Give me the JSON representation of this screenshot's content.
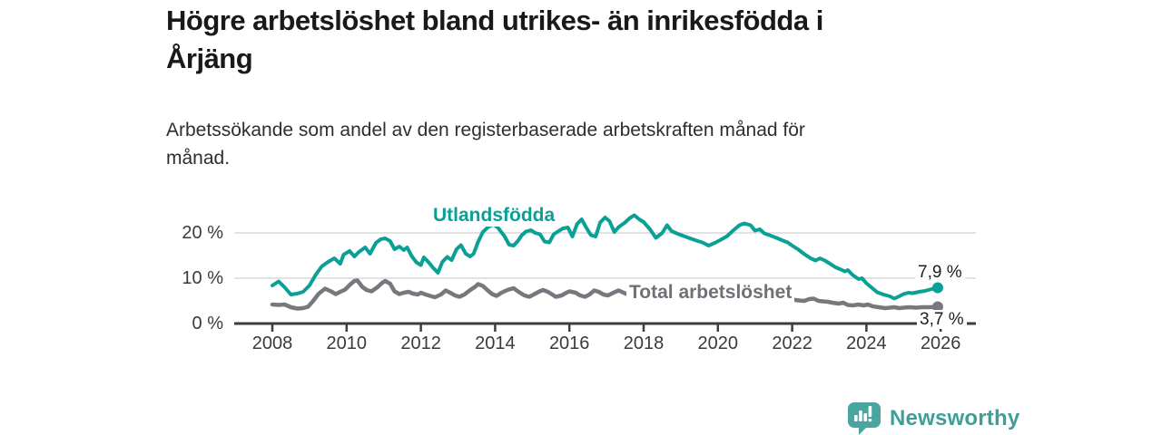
{
  "header": {
    "title": "Högre arbetslöshet bland utrikes- än inrikesfödda i\nÅrjäng",
    "subtitle": "Arbetssökande som andel av den registerbaserade arbetskraften månad för\nmånad."
  },
  "chart_data": {
    "type": "line",
    "title": "Högre arbetslöshet bland utrikes- än inrikesfödda i Årjäng",
    "subtitle": "Arbetssökande som andel av den registerbaserade arbetskraften månad för månad.",
    "unit": "%",
    "x_axis": {
      "ticks": [
        2008,
        2010,
        2012,
        2014,
        2016,
        2018,
        2020,
        2022,
        2024,
        2026
      ],
      "range": [
        2008,
        2026.8
      ]
    },
    "y_axis": {
      "ticks": [
        0,
        10,
        20
      ],
      "tick_labels": [
        "0 %",
        "10 %",
        "20 %"
      ],
      "range": [
        0,
        25
      ],
      "grid": true
    },
    "grid_color": "#d9d9d9",
    "axis_color": "#3d3d3d",
    "legend_position": "inline-labels",
    "series": [
      {
        "name": "Utlandsfödda",
        "color": "#0aa096",
        "end_label": "7,9 %",
        "end_value": 7.9,
        "points": [
          [
            2008.0,
            8.4
          ],
          [
            2008.17,
            9.3
          ],
          [
            2008.33,
            8.0
          ],
          [
            2008.5,
            6.4
          ],
          [
            2008.67,
            6.6
          ],
          [
            2008.83,
            7.0
          ],
          [
            2009.0,
            8.4
          ],
          [
            2009.17,
            10.8
          ],
          [
            2009.33,
            12.6
          ],
          [
            2009.5,
            13.6
          ],
          [
            2009.67,
            14.4
          ],
          [
            2009.83,
            13.2
          ],
          [
            2009.92,
            15.2
          ],
          [
            2010.08,
            16.0
          ],
          [
            2010.21,
            14.8
          ],
          [
            2010.33,
            15.8
          ],
          [
            2010.5,
            16.8
          ],
          [
            2010.63,
            15.4
          ],
          [
            2010.79,
            17.8
          ],
          [
            2010.92,
            18.6
          ],
          [
            2011.04,
            18.8
          ],
          [
            2011.17,
            18.2
          ],
          [
            2011.29,
            16.4
          ],
          [
            2011.42,
            17.0
          ],
          [
            2011.54,
            16.2
          ],
          [
            2011.63,
            16.8
          ],
          [
            2011.75,
            14.9
          ],
          [
            2011.88,
            13.5
          ],
          [
            2012.0,
            12.9
          ],
          [
            2012.08,
            14.6
          ],
          [
            2012.21,
            13.5
          ],
          [
            2012.33,
            12.3
          ],
          [
            2012.46,
            11.2
          ],
          [
            2012.58,
            13.6
          ],
          [
            2012.71,
            14.7
          ],
          [
            2012.83,
            14.0
          ],
          [
            2012.96,
            16.4
          ],
          [
            2013.08,
            17.3
          ],
          [
            2013.21,
            15.4
          ],
          [
            2013.33,
            14.8
          ],
          [
            2013.42,
            15.4
          ],
          [
            2013.54,
            18.0
          ],
          [
            2013.67,
            20.2
          ],
          [
            2013.83,
            21.4
          ],
          [
            2013.96,
            21.9
          ],
          [
            2014.08,
            21.1
          ],
          [
            2014.25,
            19.3
          ],
          [
            2014.38,
            17.4
          ],
          [
            2014.5,
            17.2
          ],
          [
            2014.63,
            18.4
          ],
          [
            2014.71,
            19.4
          ],
          [
            2014.83,
            20.3
          ],
          [
            2014.96,
            20.6
          ],
          [
            2015.08,
            20.0
          ],
          [
            2015.21,
            19.7
          ],
          [
            2015.33,
            18.1
          ],
          [
            2015.46,
            17.9
          ],
          [
            2015.58,
            19.7
          ],
          [
            2015.71,
            20.4
          ],
          [
            2015.83,
            21.0
          ],
          [
            2015.96,
            21.2
          ],
          [
            2016.08,
            19.2
          ],
          [
            2016.21,
            22.0
          ],
          [
            2016.33,
            23.0
          ],
          [
            2016.46,
            21.1
          ],
          [
            2016.58,
            19.5
          ],
          [
            2016.71,
            19.2
          ],
          [
            2016.83,
            22.3
          ],
          [
            2016.96,
            23.4
          ],
          [
            2017.08,
            22.6
          ],
          [
            2017.21,
            20.2
          ],
          [
            2017.33,
            21.3
          ],
          [
            2017.5,
            22.3
          ],
          [
            2017.63,
            23.3
          ],
          [
            2017.75,
            23.9
          ],
          [
            2017.88,
            23.0
          ],
          [
            2018.0,
            22.4
          ],
          [
            2018.17,
            20.8
          ],
          [
            2018.33,
            18.9
          ],
          [
            2018.5,
            20.0
          ],
          [
            2018.63,
            21.7
          ],
          [
            2018.75,
            20.4
          ],
          [
            2018.92,
            19.8
          ],
          [
            2019.08,
            19.3
          ],
          [
            2019.25,
            18.8
          ],
          [
            2019.42,
            18.3
          ],
          [
            2019.58,
            17.9
          ],
          [
            2019.75,
            17.2
          ],
          [
            2019.92,
            17.8
          ],
          [
            2020.08,
            18.5
          ],
          [
            2020.25,
            19.3
          ],
          [
            2020.42,
            20.6
          ],
          [
            2020.58,
            21.7
          ],
          [
            2020.71,
            22.1
          ],
          [
            2020.88,
            21.7
          ],
          [
            2021.0,
            20.5
          ],
          [
            2021.13,
            20.8
          ],
          [
            2021.25,
            19.9
          ],
          [
            2021.42,
            19.4
          ],
          [
            2021.58,
            18.9
          ],
          [
            2021.75,
            18.3
          ],
          [
            2021.88,
            17.9
          ],
          [
            2022.0,
            17.2
          ],
          [
            2022.17,
            16.3
          ],
          [
            2022.33,
            15.3
          ],
          [
            2022.5,
            14.4
          ],
          [
            2022.63,
            13.9
          ],
          [
            2022.75,
            14.4
          ],
          [
            2022.88,
            13.9
          ],
          [
            2023.0,
            13.3
          ],
          [
            2023.17,
            12.4
          ],
          [
            2023.29,
            12.0
          ],
          [
            2023.42,
            11.5
          ],
          [
            2023.5,
            11.8
          ],
          [
            2023.63,
            10.7
          ],
          [
            2023.79,
            9.8
          ],
          [
            2023.88,
            10.0
          ],
          [
            2024.0,
            8.9
          ],
          [
            2024.13,
            8.0
          ],
          [
            2024.29,
            6.9
          ],
          [
            2024.46,
            6.4
          ],
          [
            2024.63,
            6.0
          ],
          [
            2024.75,
            5.5
          ],
          [
            2024.88,
            6.0
          ],
          [
            2025.0,
            6.5
          ],
          [
            2025.13,
            6.8
          ],
          [
            2025.25,
            6.7
          ],
          [
            2025.42,
            7.0
          ],
          [
            2025.58,
            7.2
          ],
          [
            2025.75,
            7.6
          ],
          [
            2025.92,
            7.9
          ]
        ]
      },
      {
        "name": "Total arbetslöshet",
        "color": "#75787d",
        "end_label": "3,7 %",
        "end_value": 3.7,
        "points": [
          [
            2008.0,
            4.2
          ],
          [
            2008.17,
            4.1
          ],
          [
            2008.33,
            4.2
          ],
          [
            2008.5,
            3.6
          ],
          [
            2008.67,
            3.3
          ],
          [
            2008.83,
            3.4
          ],
          [
            2008.96,
            3.7
          ],
          [
            2009.08,
            4.8
          ],
          [
            2009.25,
            6.6
          ],
          [
            2009.42,
            7.7
          ],
          [
            2009.58,
            7.1
          ],
          [
            2009.71,
            6.5
          ],
          [
            2009.83,
            7.0
          ],
          [
            2009.96,
            7.5
          ],
          [
            2010.08,
            8.5
          ],
          [
            2010.21,
            9.4
          ],
          [
            2010.29,
            9.5
          ],
          [
            2010.42,
            8.1
          ],
          [
            2010.54,
            7.4
          ],
          [
            2010.67,
            7.1
          ],
          [
            2010.83,
            8.0
          ],
          [
            2010.96,
            9.0
          ],
          [
            2011.04,
            9.4
          ],
          [
            2011.17,
            8.8
          ],
          [
            2011.29,
            7.1
          ],
          [
            2011.42,
            6.5
          ],
          [
            2011.54,
            6.8
          ],
          [
            2011.67,
            7.0
          ],
          [
            2011.79,
            6.6
          ],
          [
            2011.92,
            6.4
          ],
          [
            2012.0,
            6.8
          ],
          [
            2012.13,
            6.4
          ],
          [
            2012.25,
            6.1
          ],
          [
            2012.38,
            5.8
          ],
          [
            2012.54,
            6.4
          ],
          [
            2012.67,
            7.3
          ],
          [
            2012.79,
            6.8
          ],
          [
            2012.92,
            6.2
          ],
          [
            2013.04,
            5.9
          ],
          [
            2013.17,
            6.4
          ],
          [
            2013.33,
            7.4
          ],
          [
            2013.46,
            8.1
          ],
          [
            2013.54,
            8.7
          ],
          [
            2013.67,
            8.3
          ],
          [
            2013.79,
            7.4
          ],
          [
            2013.92,
            6.5
          ],
          [
            2014.04,
            6.1
          ],
          [
            2014.17,
            6.8
          ],
          [
            2014.33,
            7.4
          ],
          [
            2014.5,
            7.8
          ],
          [
            2014.63,
            7.0
          ],
          [
            2014.79,
            6.2
          ],
          [
            2014.92,
            5.9
          ],
          [
            2015.04,
            6.4
          ],
          [
            2015.17,
            7.0
          ],
          [
            2015.29,
            7.4
          ],
          [
            2015.42,
            7.0
          ],
          [
            2015.54,
            6.4
          ],
          [
            2015.63,
            5.9
          ],
          [
            2015.79,
            6.2
          ],
          [
            2015.92,
            6.8
          ],
          [
            2016.0,
            7.1
          ],
          [
            2016.17,
            6.8
          ],
          [
            2016.29,
            6.2
          ],
          [
            2016.42,
            5.9
          ],
          [
            2016.54,
            6.4
          ],
          [
            2016.67,
            7.3
          ],
          [
            2016.79,
            7.0
          ],
          [
            2016.92,
            6.4
          ],
          [
            2017.04,
            6.2
          ],
          [
            2017.21,
            6.9
          ],
          [
            2017.33,
            7.3
          ],
          [
            2017.46,
            6.8
          ],
          [
            2017.58,
            6.4
          ],
          [
            2017.71,
            6.9
          ],
          [
            2017.88,
            6.6
          ],
          [
            2018.0,
            6.3
          ],
          [
            2018.17,
            6.6
          ],
          [
            2018.33,
            6.9
          ],
          [
            2018.5,
            6.5
          ],
          [
            2018.67,
            6.2
          ],
          [
            2018.83,
            6.0
          ],
          [
            2019.0,
            6.1
          ],
          [
            2019.17,
            6.3
          ],
          [
            2019.33,
            6.4
          ],
          [
            2019.5,
            6.0
          ],
          [
            2019.67,
            5.8
          ],
          [
            2019.83,
            5.9
          ],
          [
            2020.0,
            6.1
          ],
          [
            2020.17,
            6.5
          ],
          [
            2020.33,
            7.1
          ],
          [
            2020.5,
            7.4
          ],
          [
            2020.67,
            7.1
          ],
          [
            2020.83,
            6.8
          ],
          [
            2021.0,
            6.6
          ],
          [
            2021.17,
            6.4
          ],
          [
            2021.33,
            6.2
          ],
          [
            2021.5,
            6.0
          ],
          [
            2021.67,
            5.8
          ],
          [
            2021.83,
            5.6
          ],
          [
            2022.0,
            5.3
          ],
          [
            2022.17,
            5.1
          ],
          [
            2022.33,
            5.0
          ],
          [
            2022.46,
            5.4
          ],
          [
            2022.58,
            5.5
          ],
          [
            2022.71,
            5.0
          ],
          [
            2022.83,
            4.9
          ],
          [
            2022.96,
            4.8
          ],
          [
            2023.08,
            4.6
          ],
          [
            2023.25,
            4.4
          ],
          [
            2023.38,
            4.6
          ],
          [
            2023.5,
            4.1
          ],
          [
            2023.63,
            4.0
          ],
          [
            2023.79,
            4.2
          ],
          [
            2023.92,
            4.0
          ],
          [
            2024.04,
            4.2
          ],
          [
            2024.17,
            3.8
          ],
          [
            2024.33,
            3.6
          ],
          [
            2024.5,
            3.4
          ],
          [
            2024.63,
            3.5
          ],
          [
            2024.75,
            3.6
          ],
          [
            2024.88,
            3.4
          ],
          [
            2025.0,
            3.5
          ],
          [
            2025.17,
            3.6
          ],
          [
            2025.33,
            3.5
          ],
          [
            2025.5,
            3.6
          ],
          [
            2025.71,
            3.6
          ],
          [
            2025.92,
            3.7
          ]
        ]
      }
    ]
  },
  "footer": {
    "brand": "Newsworthy",
    "brand_color": "#3f9e98",
    "logo_icon": "bar-chart-speech-bubble-icon"
  }
}
